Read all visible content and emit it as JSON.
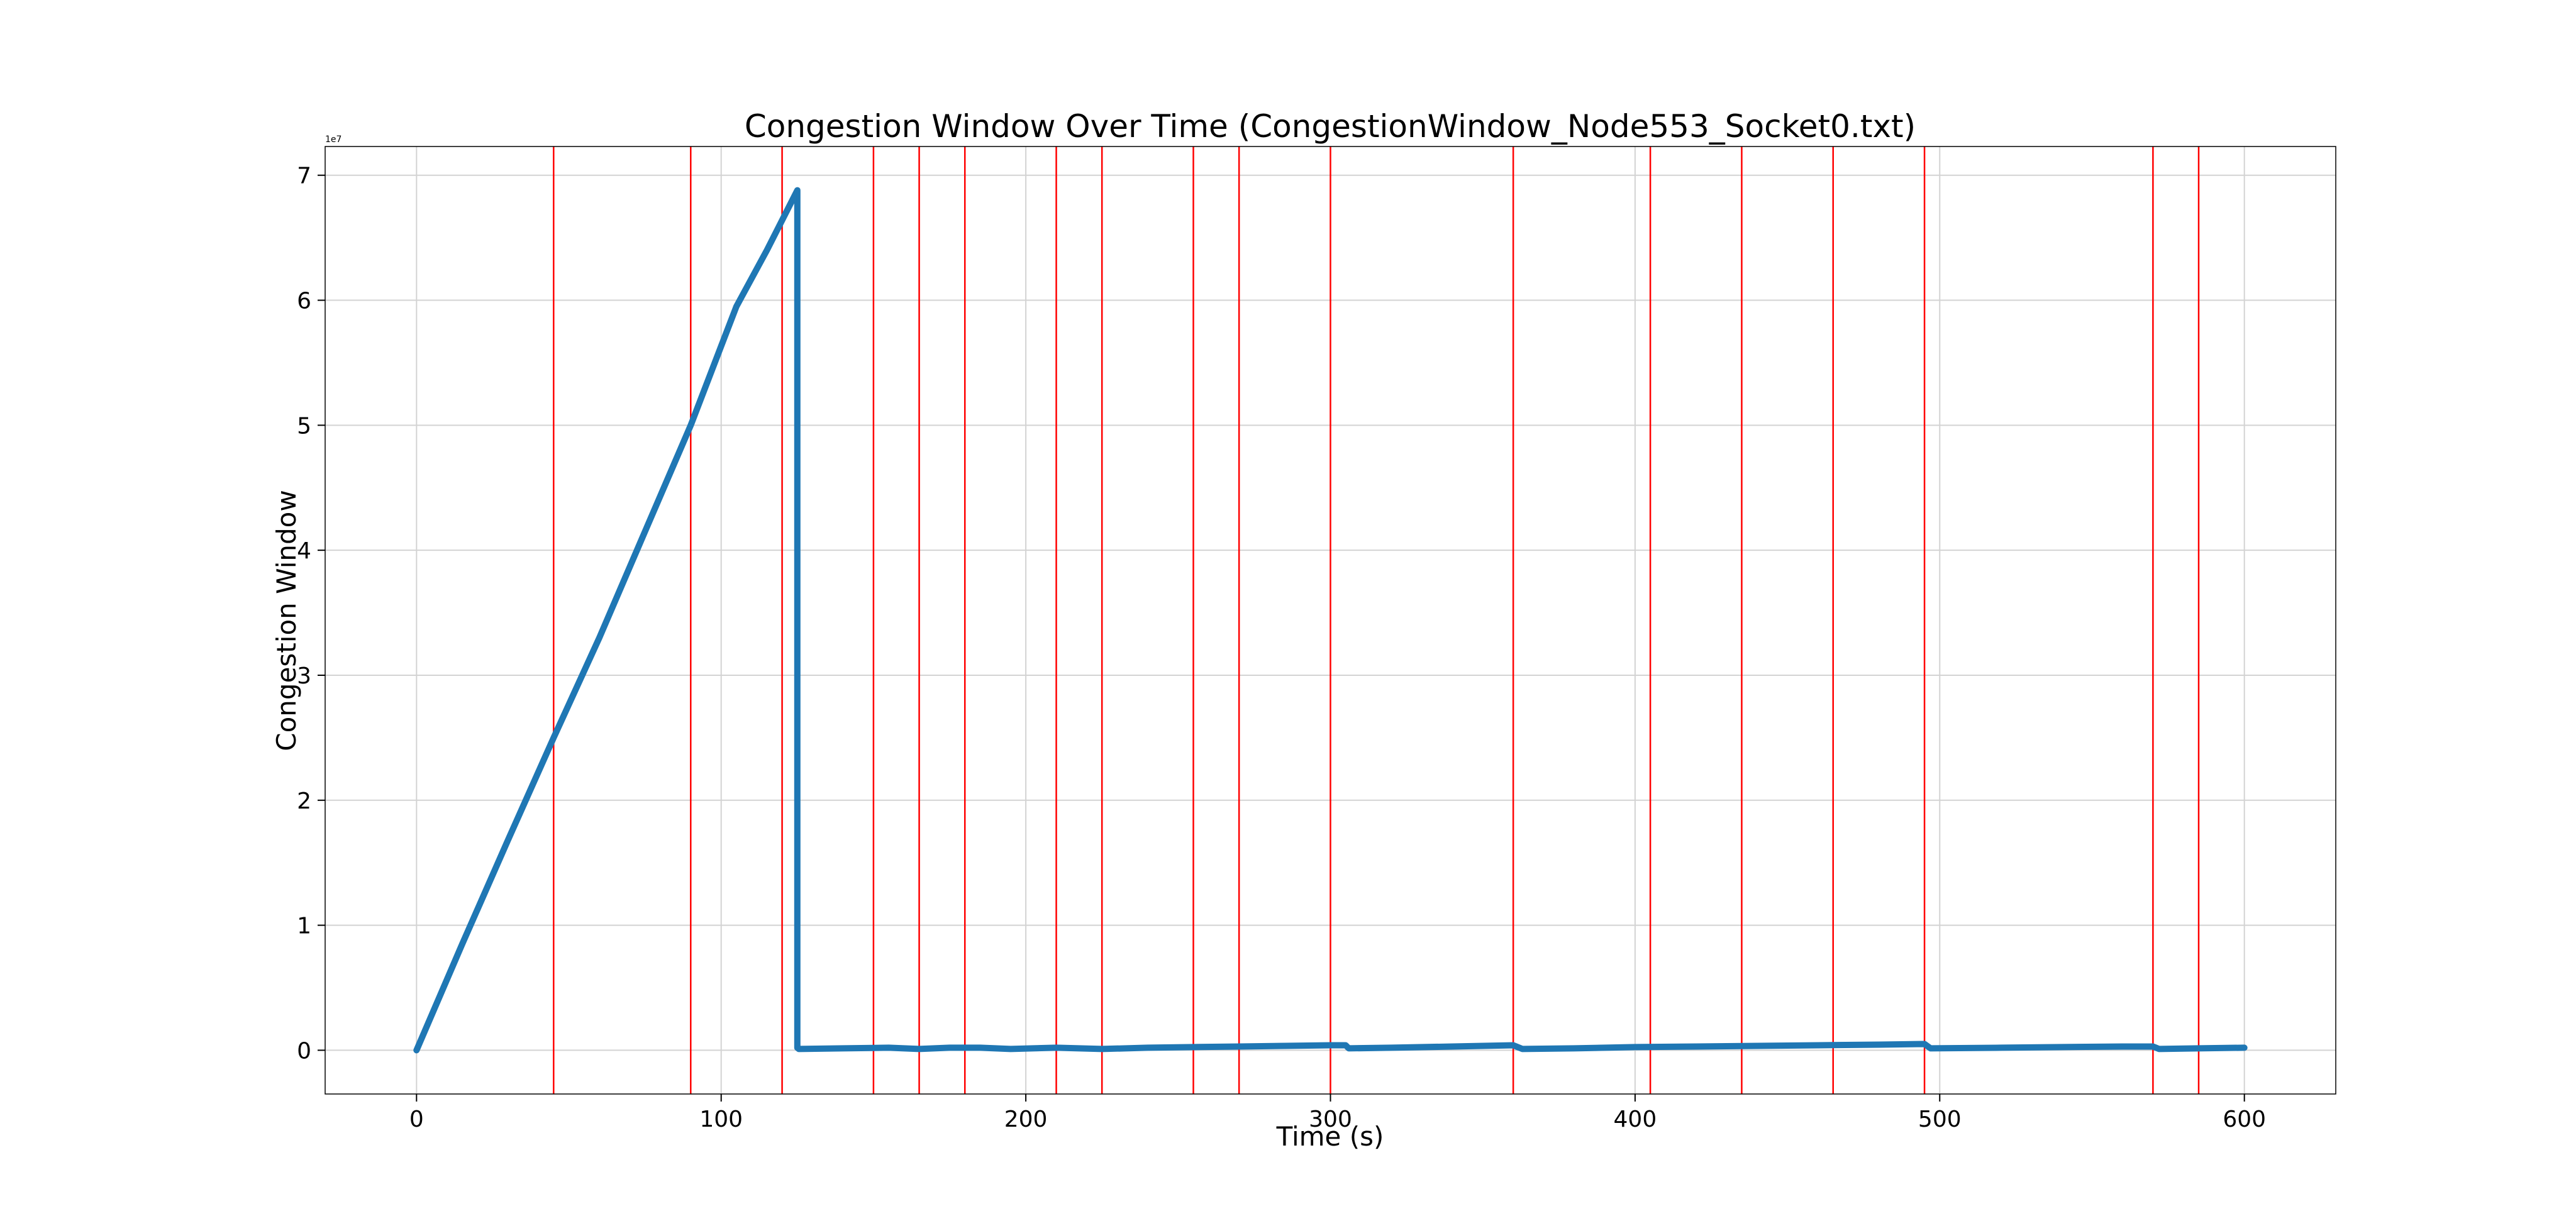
{
  "chart_data": {
    "type": "line",
    "title": "Congestion Window Over Time (CongestionWindow_Node553_Socket0.txt)",
    "xlabel": "Time (s)",
    "ylabel": "Congestion Window",
    "y_offset_text": "1e7",
    "xlim": [
      -30,
      630
    ],
    "ylim": [
      -3500000,
      72300000
    ],
    "x_ticks": [
      0,
      100,
      200,
      300,
      400,
      500,
      600
    ],
    "x_tick_labels": [
      "0",
      "100",
      "200",
      "300",
      "400",
      "500",
      "600"
    ],
    "y_ticks": [
      0,
      10000000,
      20000000,
      30000000,
      40000000,
      50000000,
      60000000,
      70000000
    ],
    "y_tick_labels": [
      "0",
      "1",
      "2",
      "3",
      "4",
      "5",
      "6",
      "7"
    ],
    "grid": true,
    "series": [
      {
        "color": "#1f77b4",
        "x": [
          0,
          15,
          30,
          45,
          60,
          75,
          90,
          105,
          115,
          125,
          125,
          125.5,
          140,
          155,
          165,
          175,
          185,
          195,
          210,
          225,
          240,
          255,
          270,
          285,
          300,
          305,
          306,
          320,
          340,
          360,
          363,
          380,
          400,
          420,
          440,
          460,
          480,
          495,
          497,
          520,
          540,
          560,
          570,
          572,
          585,
          600
        ],
        "y": [
          0,
          8500000,
          16800000,
          25000000,
          33000000,
          41500000,
          50000000,
          59500000,
          64000000,
          68800000,
          200000,
          100000,
          150000,
          200000,
          100000,
          200000,
          200000,
          100000,
          200000,
          100000,
          200000,
          250000,
          300000,
          350000,
          400000,
          400000,
          150000,
          200000,
          300000,
          400000,
          100000,
          150000,
          250000,
          300000,
          350000,
          400000,
          450000,
          500000,
          150000,
          200000,
          250000,
          300000,
          300000,
          100000,
          150000,
          200000
        ]
      }
    ],
    "vlines": {
      "color": "#ff0000",
      "x": [
        45,
        90,
        120,
        150,
        165,
        180,
        210,
        225,
        255,
        270,
        300,
        360,
        405,
        435,
        465,
        495,
        570,
        585
      ]
    }
  }
}
